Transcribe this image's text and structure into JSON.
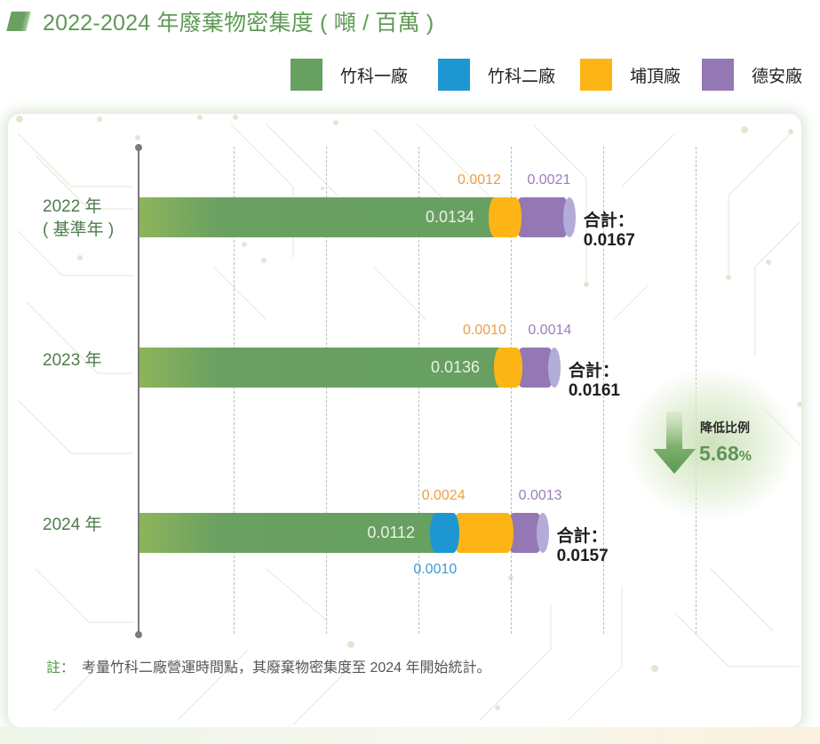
{
  "title": "2022-2024 年廢棄物密集度 ( 噸 / 百萬 )",
  "legend": [
    {
      "label": "竹科一廠",
      "color": "#67a061"
    },
    {
      "label": "竹科二廠",
      "color": "#1e96d2"
    },
    {
      "label": "埔頂廠",
      "color": "#fdb515"
    },
    {
      "label": "德安廠",
      "color": "#9378b4"
    }
  ],
  "chart_data": {
    "type": "bar",
    "orientation": "horizontal",
    "stacked": true,
    "title": "2022-2024 年廢棄物密集度 ( 噸 / 百萬 )",
    "unit": "噸 / 百萬",
    "categories": [
      "2022 年 ( 基準年 )",
      "2023 年",
      "2024 年"
    ],
    "category_labels": [
      {
        "line1": "2022 年",
        "line2": "( 基準年 )"
      },
      {
        "line1": "2023 年",
        "line2": ""
      },
      {
        "line1": "2024 年",
        "line2": ""
      }
    ],
    "series": [
      {
        "name": "竹科一廠",
        "color": "#67a061",
        "values": [
          0.0134,
          0.0136,
          0.0112
        ],
        "labels": [
          "0.0134",
          "0.0136",
          "0.0112"
        ]
      },
      {
        "name": "竹科二廠",
        "color": "#1e96d2",
        "values": [
          0,
          0,
          0.001
        ],
        "labels": [
          "",
          "",
          "0.0010"
        ]
      },
      {
        "name": "埔頂廠",
        "color": "#fdb515",
        "values": [
          0.0012,
          0.001,
          0.0024
        ],
        "labels": [
          "0.0012",
          "0.0010",
          "0.0024"
        ]
      },
      {
        "name": "德安廠",
        "color": "#9378b4",
        "values": [
          0.0021,
          0.0014,
          0.0013
        ],
        "labels": [
          "0.0021",
          "0.0014",
          "0.0013"
        ]
      }
    ],
    "totals": [
      {
        "prefix": "合計：",
        "value": "0.0167"
      },
      {
        "prefix": "合計：",
        "value": "0.0161"
      },
      {
        "prefix": "合計：",
        "value": "0.0157"
      }
    ],
    "xlim": [
      0,
      0.0195
    ],
    "grid": true,
    "legend_position": "top-right"
  },
  "reduction": {
    "label": "降低比例",
    "value": "5.68",
    "unit": "%"
  },
  "note": {
    "prefix": "註：",
    "text": "考量竹科二廠營運時間點，其廢棄物密集度至 2024 年開始統計。"
  }
}
